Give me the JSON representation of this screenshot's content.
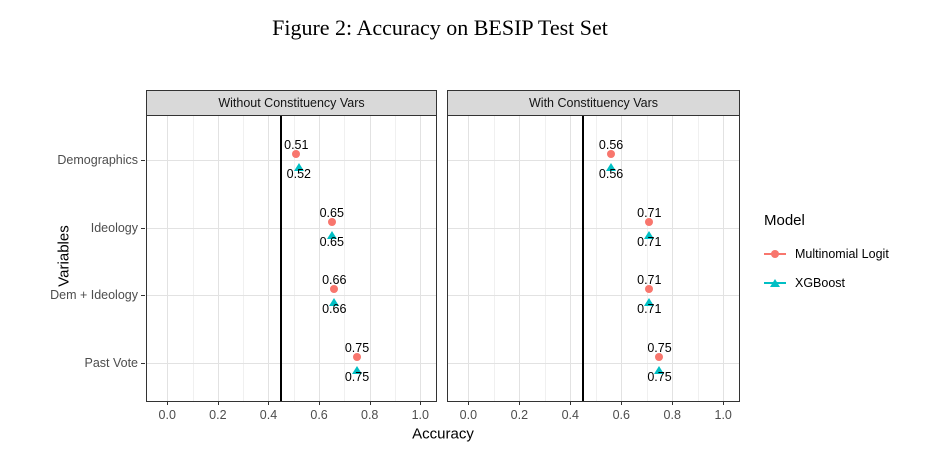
{
  "figure": {
    "title": "Figure 2: Accuracy on BESIP Test Set"
  },
  "chart_data": {
    "type": "scatter",
    "title": "Figure 2: Accuracy on BESIP Test Set",
    "xlabel": "Accuracy",
    "ylabel": "Variables",
    "categories": [
      "Demographics",
      "Ideology",
      "Dem + Ideology",
      "Past Vote"
    ],
    "x_ticks": [
      0.0,
      0.2,
      0.4,
      0.6,
      0.8,
      1.0
    ],
    "x_minor_ticks": [
      0.1,
      0.3,
      0.5,
      0.7,
      0.9
    ],
    "xlim": [
      -0.08,
      1.062
    ],
    "reference_line_x": 0.45,
    "grid": true,
    "legend_position": "right",
    "value_label_decimals": 2,
    "facets": [
      {
        "label": "Without Constituency Vars",
        "series": [
          {
            "name": "Multinomial Logit",
            "marker": "circle",
            "color": "#F8766D",
            "values": [
              0.51,
              0.65,
              0.66,
              0.75
            ]
          },
          {
            "name": "XGBoost",
            "marker": "triangle",
            "color": "#00BFC4",
            "values": [
              0.52,
              0.65,
              0.66,
              0.75
            ]
          }
        ]
      },
      {
        "label": "With Constituency Vars",
        "series": [
          {
            "name": "Multinomial Logit",
            "marker": "circle",
            "color": "#F8766D",
            "values": [
              0.56,
              0.71,
              0.71,
              0.75
            ]
          },
          {
            "name": "XGBoost",
            "marker": "triangle",
            "color": "#00BFC4",
            "values": [
              0.56,
              0.71,
              0.71,
              0.75
            ]
          }
        ]
      }
    ],
    "legend": {
      "title": "Model",
      "entries": [
        {
          "label": "Multinomial Logit",
          "marker": "circle",
          "color": "#F8766D"
        },
        {
          "label": "XGBoost",
          "marker": "triangle",
          "color": "#00BFC4"
        }
      ]
    },
    "colors": {
      "strip_bg": "#D9D9D9",
      "panel_border": "#333333",
      "grid_major": "#E2E2E2",
      "grid_minor": "#F0F0F0",
      "tick_text": "#4D4D4D",
      "reference_line": "#000000"
    }
  }
}
